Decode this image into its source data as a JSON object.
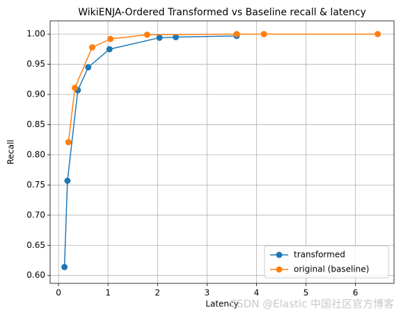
{
  "chart_data": {
    "type": "line",
    "title": "WikiENJA-Ordered Transformed vs Baseline recall & latency",
    "x_label": "Latency",
    "y_label": "Recall",
    "xlim": [
      -0.17,
      6.78
    ],
    "ylim": [
      0.587,
      1.022
    ],
    "xticks": [
      0,
      1,
      2,
      3,
      4,
      5,
      6
    ],
    "yticks": [
      {
        "value": 0.6,
        "label": "0.60"
      },
      {
        "value": 0.65,
        "label": "0.65"
      },
      {
        "value": 0.7,
        "label": "0.70"
      },
      {
        "value": 0.75,
        "label": "0.75"
      },
      {
        "value": 0.8,
        "label": "0.80"
      },
      {
        "value": 0.85,
        "label": "0.85"
      },
      {
        "value": 0.9,
        "label": "0.90"
      },
      {
        "value": 0.95,
        "label": "0.95"
      },
      {
        "value": 1.0,
        "label": "1.00"
      }
    ],
    "grid": true,
    "legend": "lower right",
    "series": [
      {
        "name": "transformed",
        "color": "#1f77b4",
        "x": [
          0.12,
          0.18,
          0.39,
          0.6,
          1.03,
          2.04,
          2.37,
          3.6
        ],
        "values": [
          0.614,
          0.757,
          0.907,
          0.945,
          0.975,
          0.994,
          0.995,
          0.997
        ]
      },
      {
        "name": "original (baseline)",
        "color": "#ff7f0e",
        "x": [
          0.2,
          0.33,
          0.68,
          1.05,
          1.79,
          3.6,
          4.15,
          6.45
        ],
        "values": [
          0.821,
          0.911,
          0.978,
          0.992,
          0.999,
          1.0,
          1.0,
          1.0
        ]
      }
    ],
    "watermark": "CSDN @Elastic 中国社区官方博客"
  }
}
